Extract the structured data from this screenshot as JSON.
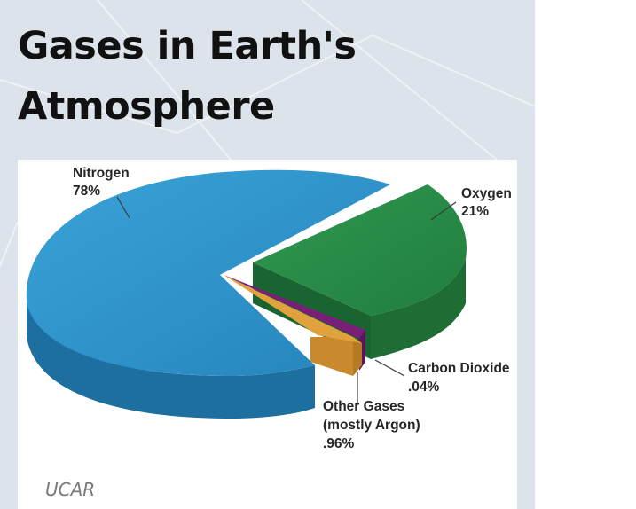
{
  "page": {
    "title_line1": "Gases in Earth's",
    "title_line2": "Atmosphere",
    "caption": "UCAR"
  },
  "chart_data": {
    "type": "pie",
    "style": "3d exploded pie",
    "slices": [
      {
        "name": "Nitrogen",
        "value_label": "78%",
        "value": 78,
        "color": "#2a8fc6"
      },
      {
        "name": "Oxygen",
        "value_label": "21%",
        "value": 21,
        "color": "#278a46"
      },
      {
        "name": "Carbon Dioxide",
        "value_label": ".04%",
        "value": 0.04,
        "color": "#7a1f78"
      },
      {
        "name": "Other Gases",
        "name_line2": "(mostly Argon)",
        "value_label": ".96%",
        "value": 0.96,
        "color": "#e0a23c"
      }
    ]
  }
}
